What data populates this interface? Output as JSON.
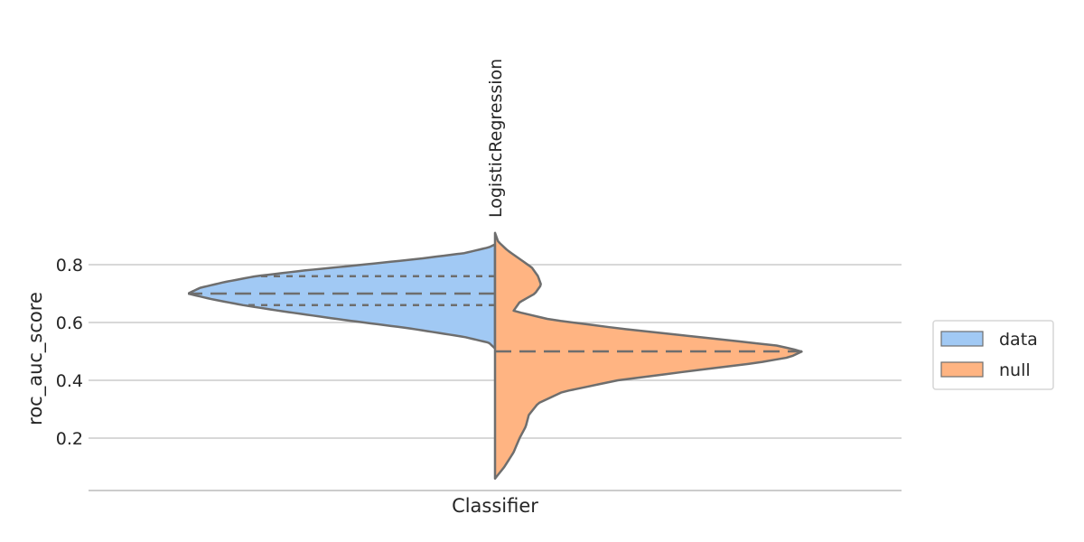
{
  "chart_data": {
    "type": "violin",
    "split": true,
    "title": "",
    "xlabel": "Classifier",
    "ylabel": "roc_auc_score",
    "categories": [
      "LogisticRegression"
    ],
    "ylim": [
      0.02,
      0.92
    ],
    "yticks": [
      0.2,
      0.4,
      0.6,
      0.8
    ],
    "grid": true,
    "legend_position": "right-center",
    "inner": "quartile",
    "series": [
      {
        "name": "data",
        "color": "#a1c9f4",
        "side": "left",
        "range": [
          0.51,
          0.87
        ],
        "median": 0.7,
        "quartiles": [
          0.66,
          0.76
        ],
        "density": [
          [
            0.51,
            0.0
          ],
          [
            0.53,
            0.02
          ],
          [
            0.55,
            0.1
          ],
          [
            0.58,
            0.28
          ],
          [
            0.61,
            0.5
          ],
          [
            0.64,
            0.7
          ],
          [
            0.66,
            0.82
          ],
          [
            0.68,
            0.92
          ],
          [
            0.7,
            1.0
          ],
          [
            0.72,
            0.96
          ],
          [
            0.74,
            0.88
          ],
          [
            0.76,
            0.78
          ],
          [
            0.78,
            0.62
          ],
          [
            0.8,
            0.43
          ],
          [
            0.82,
            0.25
          ],
          [
            0.84,
            0.1
          ],
          [
            0.86,
            0.02
          ],
          [
            0.87,
            0.0
          ]
        ]
      },
      {
        "name": "null",
        "color": "#ffb482",
        "side": "right",
        "range": [
          0.06,
          0.91
        ],
        "median": 0.5,
        "quartiles": [
          0.5,
          0.5
        ],
        "density": [
          [
            0.06,
            0.0
          ],
          [
            0.1,
            0.03
          ],
          [
            0.15,
            0.06
          ],
          [
            0.2,
            0.08
          ],
          [
            0.24,
            0.1
          ],
          [
            0.28,
            0.11
          ],
          [
            0.32,
            0.14
          ],
          [
            0.36,
            0.22
          ],
          [
            0.4,
            0.4
          ],
          [
            0.43,
            0.62
          ],
          [
            0.46,
            0.85
          ],
          [
            0.48,
            0.96
          ],
          [
            0.5,
            1.0
          ],
          [
            0.52,
            0.92
          ],
          [
            0.55,
            0.66
          ],
          [
            0.58,
            0.4
          ],
          [
            0.61,
            0.18
          ],
          [
            0.64,
            0.06
          ],
          [
            0.67,
            0.08
          ],
          [
            0.7,
            0.13
          ],
          [
            0.73,
            0.15
          ],
          [
            0.76,
            0.14
          ],
          [
            0.79,
            0.12
          ],
          [
            0.82,
            0.08
          ],
          [
            0.85,
            0.04
          ],
          [
            0.88,
            0.01
          ],
          [
            0.91,
            0.0
          ]
        ]
      }
    ]
  }
}
